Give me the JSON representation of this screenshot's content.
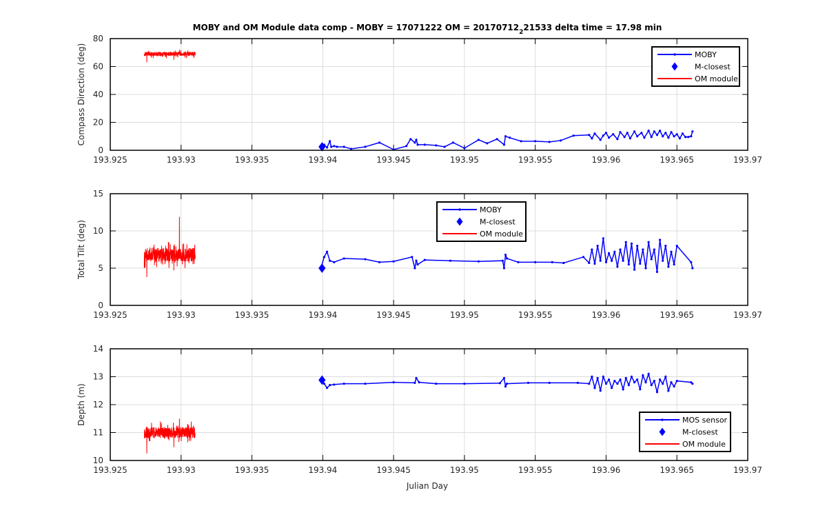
{
  "figure": {
    "title_main": "MOBY and OM Module data comp - MOBY = 17071222 OM = 20170712",
    "title_sub": "2",
    "title_tail": "21533 delta time = 17.98 min",
    "xlabel": "Julian Day"
  },
  "colors": {
    "moby": "#0000ff",
    "om": "#ff0000",
    "grid": "#dcdcdc",
    "axis": "#000000",
    "text": "#262626"
  },
  "chart_data": [
    {
      "type": "line",
      "ylabel": "Compass Direction (deg)",
      "xlim": [
        193.925,
        193.97
      ],
      "ylim": [
        0,
        80
      ],
      "xticks": [
        193.925,
        193.93,
        193.935,
        193.94,
        193.945,
        193.95,
        193.955,
        193.96,
        193.965,
        193.97
      ],
      "xtick_labels": [
        "193.925",
        "193.93",
        "193.935",
        "193.94",
        "193.945",
        "193.95",
        "193.955",
        "193.96",
        "193.965",
        "193.97"
      ],
      "yticks": [
        0,
        20,
        40,
        60,
        80
      ],
      "ytick_labels": [
        "0",
        "20",
        "40",
        "60",
        "80"
      ],
      "grid": true,
      "legend": {
        "position": "top-right",
        "entries": [
          "MOBY",
          "M-closest",
          "OM module"
        ]
      },
      "series": [
        {
          "name": "MOBY",
          "style": "line-dot",
          "color": "#0000ff",
          "x": [
            193.9399,
            193.9401,
            193.9403,
            193.9405,
            193.9406,
            193.9408,
            193.941,
            193.9415,
            193.942,
            193.943,
            193.944,
            193.945,
            193.9459,
            193.9462,
            193.9465,
            193.9466,
            193.9467,
            193.9472,
            193.948,
            193.9486,
            193.9492,
            193.95,
            193.951,
            193.9516,
            193.9523,
            193.9528,
            193.9529,
            193.9532,
            193.954,
            193.955,
            193.956,
            193.9568,
            193.9577,
            193.9588,
            193.959,
            193.9592,
            193.9596,
            193.9598,
            193.96,
            193.9602,
            193.9605,
            193.9608,
            193.961,
            193.9613,
            193.9615,
            193.9617,
            193.962,
            193.9622,
            193.9625,
            193.9627,
            193.963,
            193.9632,
            193.9634,
            193.9636,
            193.9638,
            193.964,
            193.9642,
            193.9644,
            193.9646,
            193.9648,
            193.965,
            193.9652,
            193.9654,
            193.9656,
            193.9658,
            193.966,
            193.9661
          ],
          "y": [
            1.5,
            4.0,
            2.0,
            6.5,
            2.5,
            3.0,
            2.5,
            2.5,
            1.0,
            2.5,
            5.5,
            0.5,
            3.0,
            8.0,
            5.5,
            7.5,
            4.0,
            4.0,
            3.5,
            2.5,
            5.5,
            1.5,
            7.5,
            5.0,
            8.0,
            4.0,
            10.0,
            9.0,
            6.5,
            6.5,
            6.0,
            7.0,
            10.5,
            11.0,
            8.5,
            12.0,
            7.5,
            10.5,
            12.5,
            9.0,
            11.5,
            8.0,
            13.0,
            9.5,
            12.5,
            8.5,
            13.5,
            10.0,
            12.5,
            9.0,
            14.0,
            9.5,
            13.5,
            11.0,
            14.0,
            10.0,
            12.5,
            9.0,
            13.0,
            10.0,
            11.5,
            8.5,
            12.0,
            9.5,
            9.5,
            10.0,
            13.5
          ]
        },
        {
          "name": "M-closest",
          "style": "diamond",
          "color": "#0000ff",
          "x": [
            193.93995
          ],
          "y": [
            2.5
          ]
        },
        {
          "name": "OM module",
          "style": "noise",
          "color": "#ff0000",
          "x_range": [
            193.9274,
            193.931
          ],
          "y_center": 69,
          "y_amp": 1.5,
          "y_min": 63,
          "y_max": 72
        }
      ]
    },
    {
      "type": "line",
      "ylabel": "Total Tilt (deg)",
      "xlim": [
        193.925,
        193.97
      ],
      "ylim": [
        0,
        15
      ],
      "xticks": [
        193.925,
        193.93,
        193.935,
        193.94,
        193.945,
        193.95,
        193.955,
        193.96,
        193.965,
        193.97
      ],
      "xtick_labels": [
        "193.925",
        "193.93",
        "193.935",
        "193.94",
        "193.945",
        "193.95",
        "193.955",
        "193.96",
        "193.965",
        "193.97"
      ],
      "yticks": [
        0,
        5,
        10,
        15
      ],
      "ytick_labels": [
        "0",
        "5",
        "10",
        "15"
      ],
      "grid": true,
      "legend": {
        "position": "top-center",
        "entries": [
          "MOBY",
          "M-closest",
          "OM module"
        ]
      },
      "series": [
        {
          "name": "MOBY",
          "style": "line-dot",
          "color": "#0000ff",
          "x": [
            193.9399,
            193.9401,
            193.9403,
            193.9405,
            193.9408,
            193.9415,
            193.943,
            193.944,
            193.945,
            193.9463,
            193.9465,
            193.9466,
            193.9467,
            193.9472,
            193.949,
            193.951,
            193.9527,
            193.9528,
            193.9529,
            193.953,
            193.9538,
            193.955,
            193.9562,
            193.957,
            193.9584,
            193.9588,
            193.959,
            193.9592,
            193.9594,
            193.9596,
            193.9598,
            193.96,
            193.9602,
            193.9604,
            193.9606,
            193.9608,
            193.961,
            193.9612,
            193.9614,
            193.9616,
            193.9618,
            193.962,
            193.9622,
            193.9624,
            193.9626,
            193.9628,
            193.963,
            193.9632,
            193.9634,
            193.9636,
            193.9638,
            193.964,
            193.9642,
            193.9644,
            193.9646,
            193.9648,
            193.965,
            193.966,
            193.9661
          ],
          "y": [
            5.2,
            6.5,
            7.2,
            6.0,
            5.8,
            6.3,
            6.2,
            5.8,
            5.9,
            6.5,
            5.0,
            6.0,
            5.5,
            6.1,
            6.0,
            5.9,
            6.0,
            5.0,
            6.8,
            6.3,
            5.8,
            5.8,
            5.8,
            5.7,
            6.5,
            5.7,
            7.5,
            5.6,
            8.0,
            6.0,
            9.0,
            5.8,
            7.0,
            6.0,
            7.2,
            5.2,
            7.5,
            6.0,
            8.5,
            5.5,
            8.3,
            4.8,
            8.0,
            5.6,
            7.5,
            5.0,
            8.5,
            6.2,
            7.5,
            4.5,
            8.8,
            6.0,
            8.0,
            5.2,
            7.2,
            5.5,
            8.0,
            5.8,
            5.0
          ]
        },
        {
          "name": "M-closest",
          "style": "diamond",
          "color": "#0000ff",
          "x": [
            193.93995
          ],
          "y": [
            5.0
          ]
        },
        {
          "name": "OM module",
          "style": "noise",
          "color": "#ff0000",
          "x_range": [
            193.9274,
            193.931
          ],
          "y_center": 6.8,
          "y_amp": 0.9,
          "y_min": 3.8,
          "y_max": 11.9
        }
      ]
    },
    {
      "type": "line",
      "ylabel": "Depth (m)",
      "xlabel": "Julian Day",
      "xlim": [
        193.925,
        193.97
      ],
      "ylim": [
        10,
        14
      ],
      "xticks": [
        193.925,
        193.93,
        193.935,
        193.94,
        193.945,
        193.95,
        193.955,
        193.96,
        193.965,
        193.97
      ],
      "xtick_labels": [
        "193.925",
        "193.93",
        "193.935",
        "193.94",
        "193.945",
        "193.95",
        "193.955",
        "193.96",
        "193.965",
        "193.97"
      ],
      "yticks": [
        10,
        11,
        12,
        13,
        14
      ],
      "ytick_labels": [
        "10",
        "11",
        "12",
        "13",
        "14"
      ],
      "grid": true,
      "legend": {
        "position": "bottom-right",
        "entries": [
          "MOS sensor",
          "M-closest",
          "OM module"
        ]
      },
      "series": [
        {
          "name": "MOS sensor",
          "style": "line-dot",
          "color": "#0000ff",
          "x": [
            193.9399,
            193.9401,
            193.9403,
            193.9405,
            193.9408,
            193.9415,
            193.943,
            193.945,
            193.9465,
            193.9466,
            193.9468,
            193.948,
            193.95,
            193.9525,
            193.9528,
            193.9529,
            193.953,
            193.9545,
            193.956,
            193.958,
            193.9588,
            193.959,
            193.9592,
            193.9594,
            193.9596,
            193.9598,
            193.96,
            193.9602,
            193.9604,
            193.9606,
            193.9608,
            193.961,
            193.9612,
            193.9614,
            193.9616,
            193.9618,
            193.962,
            193.9622,
            193.9624,
            193.9626,
            193.9628,
            193.963,
            193.9632,
            193.9634,
            193.9636,
            193.9638,
            193.964,
            193.9642,
            193.9644,
            193.9646,
            193.9648,
            193.965,
            193.966,
            193.9661
          ],
          "y": [
            12.85,
            12.75,
            12.6,
            12.7,
            12.72,
            12.75,
            12.75,
            12.8,
            12.78,
            12.95,
            12.8,
            12.75,
            12.75,
            12.77,
            12.95,
            12.65,
            12.75,
            12.78,
            12.78,
            12.78,
            12.75,
            13.0,
            12.6,
            12.95,
            12.5,
            13.0,
            12.75,
            12.9,
            12.6,
            12.85,
            12.75,
            12.9,
            12.55,
            12.95,
            12.7,
            13.0,
            12.8,
            12.9,
            12.55,
            13.05,
            12.8,
            13.1,
            12.7,
            12.85,
            12.45,
            12.9,
            12.75,
            13.0,
            12.5,
            12.8,
            12.65,
            12.85,
            12.8,
            12.75
          ]
        },
        {
          "name": "M-closest",
          "style": "diamond",
          "color": "#0000ff",
          "x": [
            193.93995
          ],
          "y": [
            12.88
          ]
        },
        {
          "name": "OM module",
          "style": "noise",
          "color": "#ff0000",
          "x_range": [
            193.9274,
            193.931
          ],
          "y_center": 11.0,
          "y_amp": 0.2,
          "y_min": 10.25,
          "y_max": 11.5
        }
      ]
    }
  ]
}
